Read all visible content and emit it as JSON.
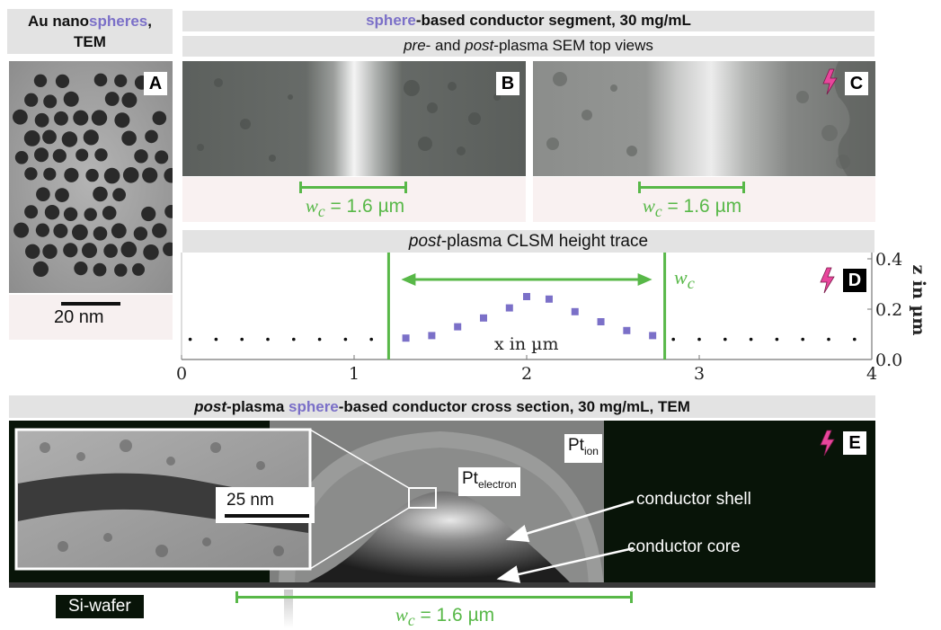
{
  "colors": {
    "accent": "#7b70c8",
    "green": "#58b848",
    "bolt": "#e8469c"
  },
  "panel_a": {
    "title_pre": "Au nano",
    "title_accent": "spheres",
    "title_post": ",",
    "title_line2": "TEM",
    "label": "A",
    "scale_text": "20 nm"
  },
  "header_top": {
    "accent": "sphere",
    "rest": "-based conductor segment, 30 mg/mL"
  },
  "subheader_top": {
    "italic1": "pre",
    "mid": "- and ",
    "italic2": "post",
    "rest": "-plasma SEM top views"
  },
  "panel_b": {
    "label": "B",
    "wc_symbol": "w",
    "wc_sub": "c",
    "wc_value": " = 1.6 µm"
  },
  "panel_c": {
    "label": "C",
    "wc_symbol": "w",
    "wc_sub": "c",
    "wc_value": " = 1.6 µm",
    "icon": "lightning-bolt-icon"
  },
  "panel_d": {
    "italic": "post",
    "title": "-plasma CLSM height trace",
    "label": "D",
    "wc_symbol": "w",
    "wc_sub": "c",
    "xlabel": "x in µm",
    "ylabel": "z in µm",
    "icon": "lightning-bolt-icon"
  },
  "chart_data": {
    "type": "scatter",
    "xlabel": "x in µm",
    "ylabel": "z in µm",
    "xlim": [
      0,
      4
    ],
    "ylim": [
      0,
      0.4
    ],
    "xticks": [
      "0",
      "1",
      "2",
      "3",
      "4"
    ],
    "yticks": [
      "0.0",
      "0.2",
      "0.4"
    ],
    "wc_lines": [
      1.2,
      2.8
    ],
    "series": [
      {
        "name": "",
        "marker": "dot",
        "x": [
          0.05,
          0.2,
          0.35,
          0.5,
          0.65,
          0.8,
          0.95,
          1.1,
          2.85,
          3.0,
          3.15,
          3.3,
          3.45,
          3.6,
          3.75,
          3.9
        ],
        "y": [
          0.08,
          0.08,
          0.08,
          0.08,
          0.08,
          0.08,
          0.08,
          0.08,
          0.08,
          0.08,
          0.08,
          0.08,
          0.08,
          0.08,
          0.08,
          0.08
        ]
      },
      {
        "name": "",
        "marker": "square",
        "x": [
          1.3,
          1.45,
          1.6,
          1.75,
          1.9,
          2.0,
          2.13,
          2.28,
          2.43,
          2.58,
          2.73
        ],
        "y": [
          0.085,
          0.095,
          0.13,
          0.165,
          0.205,
          0.25,
          0.24,
          0.19,
          0.15,
          0.115,
          0.095
        ]
      }
    ]
  },
  "header_e": {
    "italic": "post",
    "pre": "-plasma ",
    "accent": "sphere",
    "rest": "-based conductor cross section, 30 mg/mL, TEM"
  },
  "panel_e": {
    "label": "E",
    "pt_ion_main": "Pt",
    "pt_ion_sub": "ion",
    "pt_el_main": "Pt",
    "pt_el_sub": "electron",
    "shell": "conductor shell",
    "core": "conductor core",
    "inset_scale": "25 nm",
    "wafer": "Si-wafer",
    "wc_symbol": "w",
    "wc_sub": "c",
    "wc_value": " = 1.6 µm",
    "icon": "lightning-bolt-icon"
  }
}
